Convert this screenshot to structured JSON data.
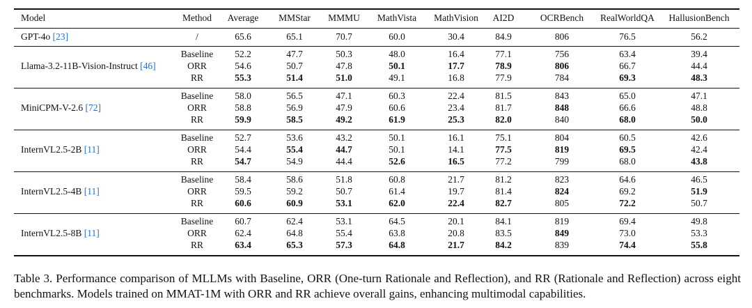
{
  "table": {
    "header": [
      "Model",
      "Method",
      "Average",
      "MMStar",
      "MMMU",
      "MathVista",
      "MathVision",
      "AI2D",
      "OCRBench",
      "RealWorldQA",
      "HallusionBench"
    ],
    "groups": [
      {
        "model": "GPT-4o",
        "cite": "[23]",
        "rows": [
          {
            "method": "/",
            "values": [
              "65.6",
              "65.1",
              "70.7",
              "60.0",
              "30.4",
              "84.9",
              "806",
              "76.5",
              "56.2"
            ]
          }
        ]
      },
      {
        "model": "Llama-3.2-11B-Vision-Instruct",
        "cite": "[46]",
        "rows": [
          {
            "method": "Baseline",
            "values": [
              "52.2",
              "47.7",
              "50.3",
              "48.0",
              "16.4",
              "77.1",
              "756",
              "63.4",
              "39.4"
            ]
          },
          {
            "method": "ORR",
            "values": [
              "54.6",
              "50.7",
              "47.8",
              "50.1",
              "17.7",
              "78.9",
              "806",
              "66.7",
              "44.4"
            ],
            "bold": [
              3,
              4,
              5,
              6
            ]
          },
          {
            "method": "RR",
            "values": [
              "55.3",
              "51.4",
              "51.0",
              "49.1",
              "16.8",
              "77.9",
              "784",
              "69.3",
              "48.3"
            ],
            "bold": [
              0,
              1,
              2,
              7,
              8
            ]
          }
        ]
      },
      {
        "model": "MiniCPM-V-2.6",
        "cite": "[72]",
        "rows": [
          {
            "method": "Baseline",
            "values": [
              "58.0",
              "56.5",
              "47.1",
              "60.3",
              "22.4",
              "81.5",
              "843",
              "65.0",
              "47.1"
            ]
          },
          {
            "method": "ORR",
            "values": [
              "58.8",
              "56.9",
              "47.9",
              "60.6",
              "23.4",
              "81.7",
              "848",
              "66.6",
              "48.8"
            ],
            "bold": [
              6
            ]
          },
          {
            "method": "RR",
            "values": [
              "59.9",
              "58.5",
              "49.2",
              "61.9",
              "25.3",
              "82.0",
              "840",
              "68.0",
              "50.0"
            ],
            "bold": [
              0,
              1,
              2,
              3,
              4,
              5,
              7,
              8
            ]
          }
        ]
      },
      {
        "model": "InternVL2.5-2B",
        "cite": "[11]",
        "rows": [
          {
            "method": "Baseline",
            "values": [
              "52.7",
              "53.6",
              "43.2",
              "50.1",
              "16.1",
              "75.1",
              "804",
              "60.5",
              "42.6"
            ]
          },
          {
            "method": "ORR",
            "values": [
              "54.4",
              "55.4",
              "44.7",
              "50.1",
              "14.1",
              "77.5",
              "819",
              "69.5",
              "42.4"
            ],
            "bold": [
              1,
              2,
              5,
              6,
              7
            ]
          },
          {
            "method": "RR",
            "values": [
              "54.7",
              "54.9",
              "44.4",
              "52.6",
              "16.5",
              "77.2",
              "799",
              "68.0",
              "43.8"
            ],
            "bold": [
              0,
              3,
              4,
              8
            ]
          }
        ]
      },
      {
        "model": "InternVL2.5-4B",
        "cite": "[11]",
        "rows": [
          {
            "method": "Baseline",
            "values": [
              "58.4",
              "58.6",
              "51.8",
              "60.8",
              "21.7",
              "81.2",
              "823",
              "64.6",
              "46.5"
            ]
          },
          {
            "method": "ORR",
            "values": [
              "59.5",
              "59.2",
              "50.7",
              "61.4",
              "19.7",
              "81.4",
              "824",
              "69.2",
              "51.9"
            ],
            "bold": [
              6,
              8
            ]
          },
          {
            "method": "RR",
            "values": [
              "60.6",
              "60.9",
              "53.1",
              "62.0",
              "22.4",
              "82.7",
              "805",
              "72.2",
              "50.7"
            ],
            "bold": [
              0,
              1,
              2,
              3,
              4,
              5,
              7
            ]
          }
        ]
      },
      {
        "model": "InternVL2.5-8B",
        "cite": "[11]",
        "rows": [
          {
            "method": "Baseline",
            "values": [
              "60.7",
              "62.4",
              "53.1",
              "64.5",
              "20.1",
              "84.1",
              "819",
              "69.4",
              "49.8"
            ]
          },
          {
            "method": "ORR",
            "values": [
              "62.4",
              "64.8",
              "55.4",
              "63.8",
              "20.8",
              "83.5",
              "849",
              "73.0",
              "53.3"
            ],
            "bold": [
              6
            ]
          },
          {
            "method": "RR",
            "values": [
              "63.4",
              "65.3",
              "57.3",
              "64.8",
              "21.7",
              "84.2",
              "839",
              "74.4",
              "55.8"
            ],
            "bold": [
              0,
              1,
              2,
              3,
              4,
              5,
              7,
              8
            ]
          }
        ]
      }
    ]
  },
  "caption": "Table 3. Performance comparison of MLLMs with Baseline, ORR (One-turn Rationale and Reflection), and RR (Rationale and Reflection) across eight benchmarks. Models trained on MMAT-1M with ORR and RR achieve overall gains, enhancing multimodal capabilities."
}
